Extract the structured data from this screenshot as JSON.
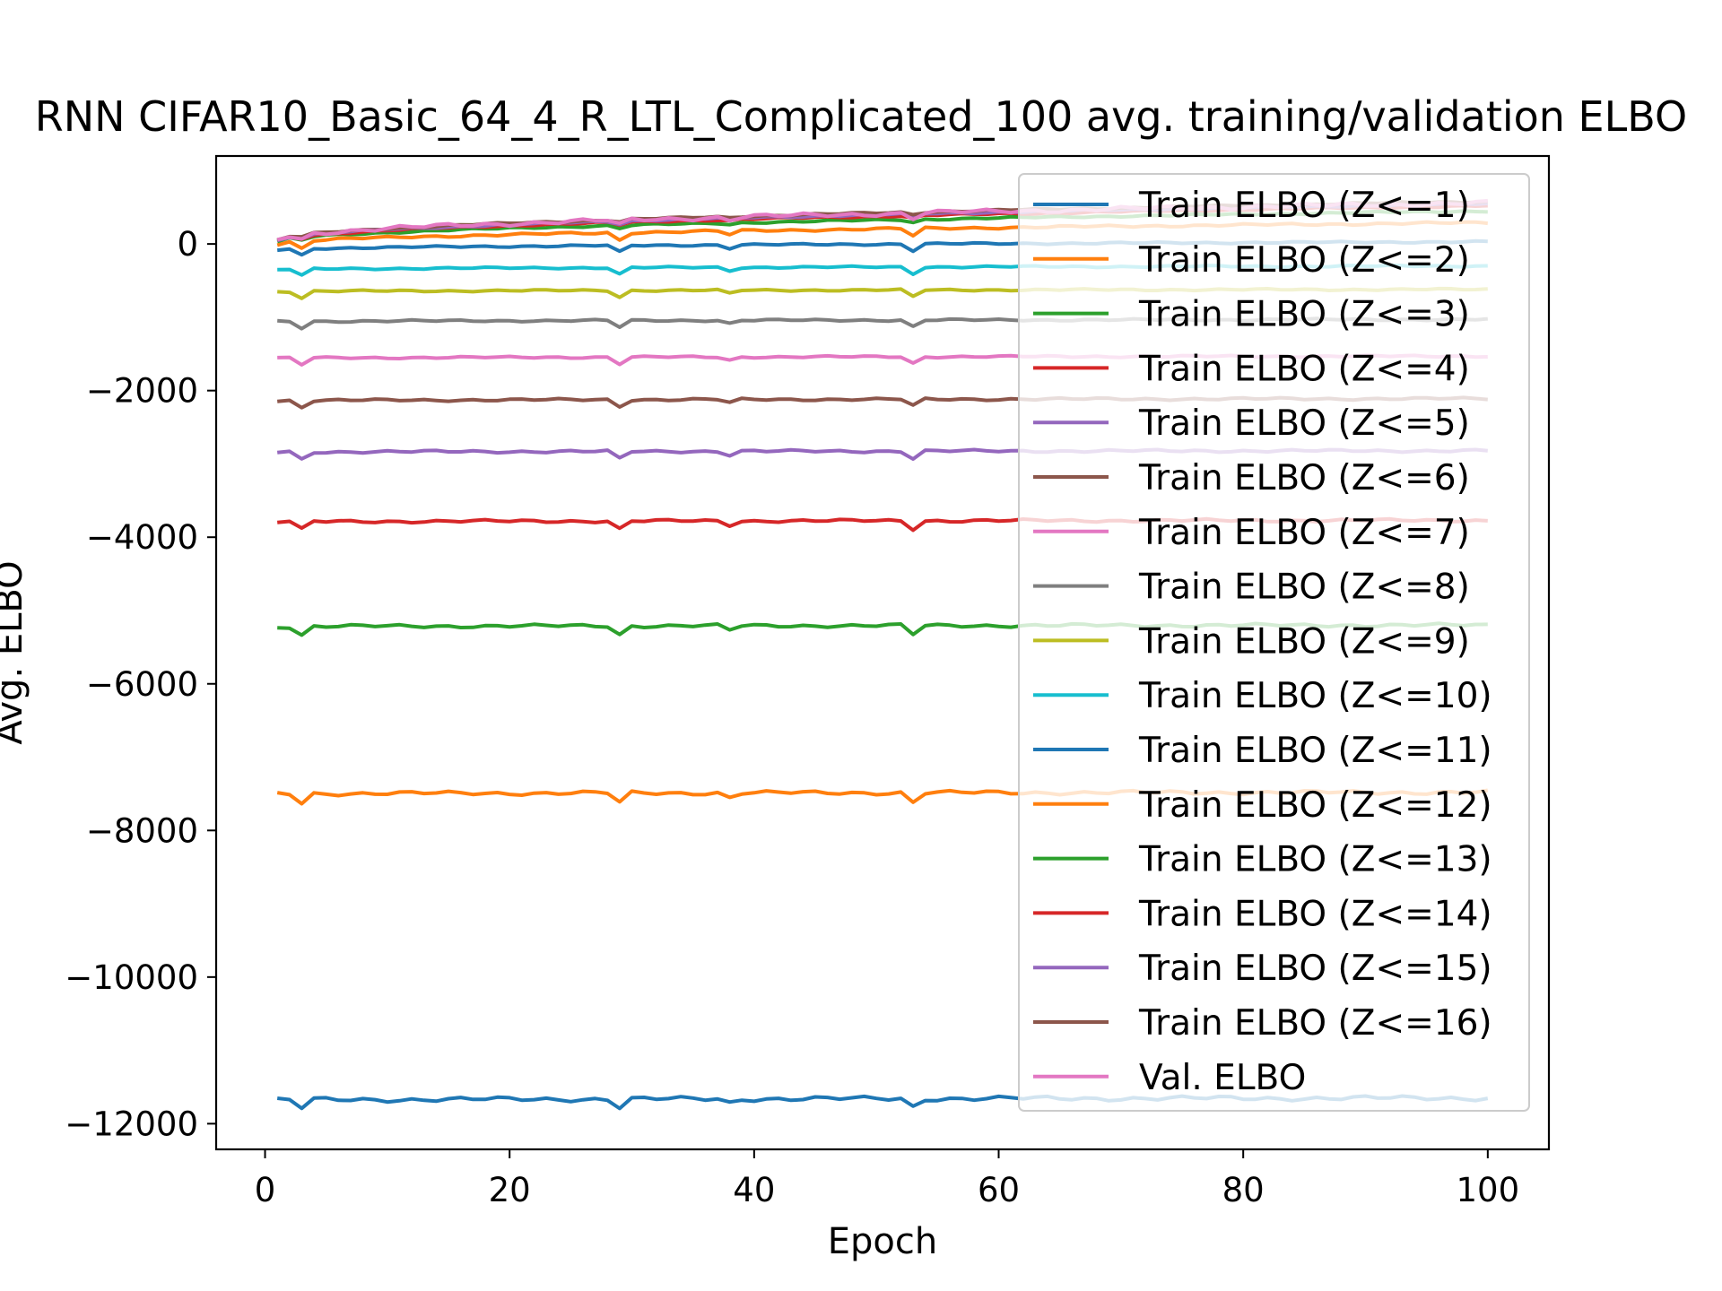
{
  "chart_data": {
    "type": "line",
    "title": "RNN CIFAR10_Basic_64_4_R_LTL_Complicated_100 avg. training/validation ELBO",
    "xlabel": "Epoch",
    "ylabel": "Avg. ELBO",
    "xlim": [
      -4,
      105
    ],
    "ylim": [
      -12350,
      1200
    ],
    "xticks": [
      0,
      20,
      40,
      60,
      80,
      100
    ],
    "yticks": [
      -12000,
      -10000,
      -8000,
      -6000,
      -4000,
      -2000,
      0
    ],
    "grid": false,
    "legend_position": "upper right",
    "x_start": 1,
    "series": [
      {
        "name": "Train ELBO (Z<=1)",
        "color": "#1f77b4",
        "start": -11680,
        "end": -11650,
        "dip": 110,
        "jitter": 35
      },
      {
        "name": "Train ELBO (Z<=2)",
        "color": "#ff7f0e",
        "start": -7500,
        "end": -7480,
        "dip": 130,
        "jitter": 30
      },
      {
        "name": "Train ELBO (Z<=3)",
        "color": "#2ca02c",
        "start": -5220,
        "end": -5200,
        "dip": 120,
        "jitter": 25
      },
      {
        "name": "Train ELBO (Z<=4)",
        "color": "#d62728",
        "start": -3790,
        "end": -3770,
        "dip": 110,
        "jitter": 22
      },
      {
        "name": "Train ELBO (Z<=5)",
        "color": "#9467bd",
        "start": -2840,
        "end": -2820,
        "dip": 100,
        "jitter": 20
      },
      {
        "name": "Train ELBO (Z<=6)",
        "color": "#8c564b",
        "start": -2140,
        "end": -2110,
        "dip": 90,
        "jitter": 18
      },
      {
        "name": "Train ELBO (Z<=7)",
        "color": "#e377c2",
        "start": -1560,
        "end": -1530,
        "dip": 90,
        "jitter": 15
      },
      {
        "name": "Train ELBO (Z<=8)",
        "color": "#7f7f7f",
        "start": -1060,
        "end": -1030,
        "dip": 90,
        "jitter": 15
      },
      {
        "name": "Train ELBO (Z<=9)",
        "color": "#bcbd22",
        "start": -650,
        "end": -620,
        "dip": 90,
        "jitter": 14
      },
      {
        "name": "Train ELBO (Z<=10)",
        "color": "#17becf",
        "start": -350,
        "end": -300,
        "dip": 90,
        "jitter": 14
      },
      {
        "name": "Train ELBO (Z<=11)",
        "color": "#1f77b4",
        "start": -80,
        "end": 30,
        "dip": 90,
        "jitter": 14
      },
      {
        "name": "Train ELBO (Z<=12)",
        "color": "#ff7f0e",
        "start": 0,
        "end": 290,
        "dip": 100,
        "jitter": 18
      },
      {
        "name": "Train ELBO (Z<=13)",
        "color": "#2ca02c",
        "start": 30,
        "end": 450,
        "dip": 40,
        "jitter": 14
      },
      {
        "name": "Train ELBO (Z<=14)",
        "color": "#d62728",
        "start": 40,
        "end": 520,
        "dip": 35,
        "jitter": 14
      },
      {
        "name": "Train ELBO (Z<=15)",
        "color": "#9467bd",
        "start": 45,
        "end": 550,
        "dip": 35,
        "jitter": 14
      },
      {
        "name": "Train ELBO (Z<=16)",
        "color": "#8c564b",
        "start": 50,
        "end": 580,
        "dip": 30,
        "jitter": 14
      },
      {
        "name": "Val. ELBO",
        "color": "#e377c2",
        "start": 60,
        "end": 560,
        "dip": 70,
        "jitter": 35
      }
    ]
  }
}
